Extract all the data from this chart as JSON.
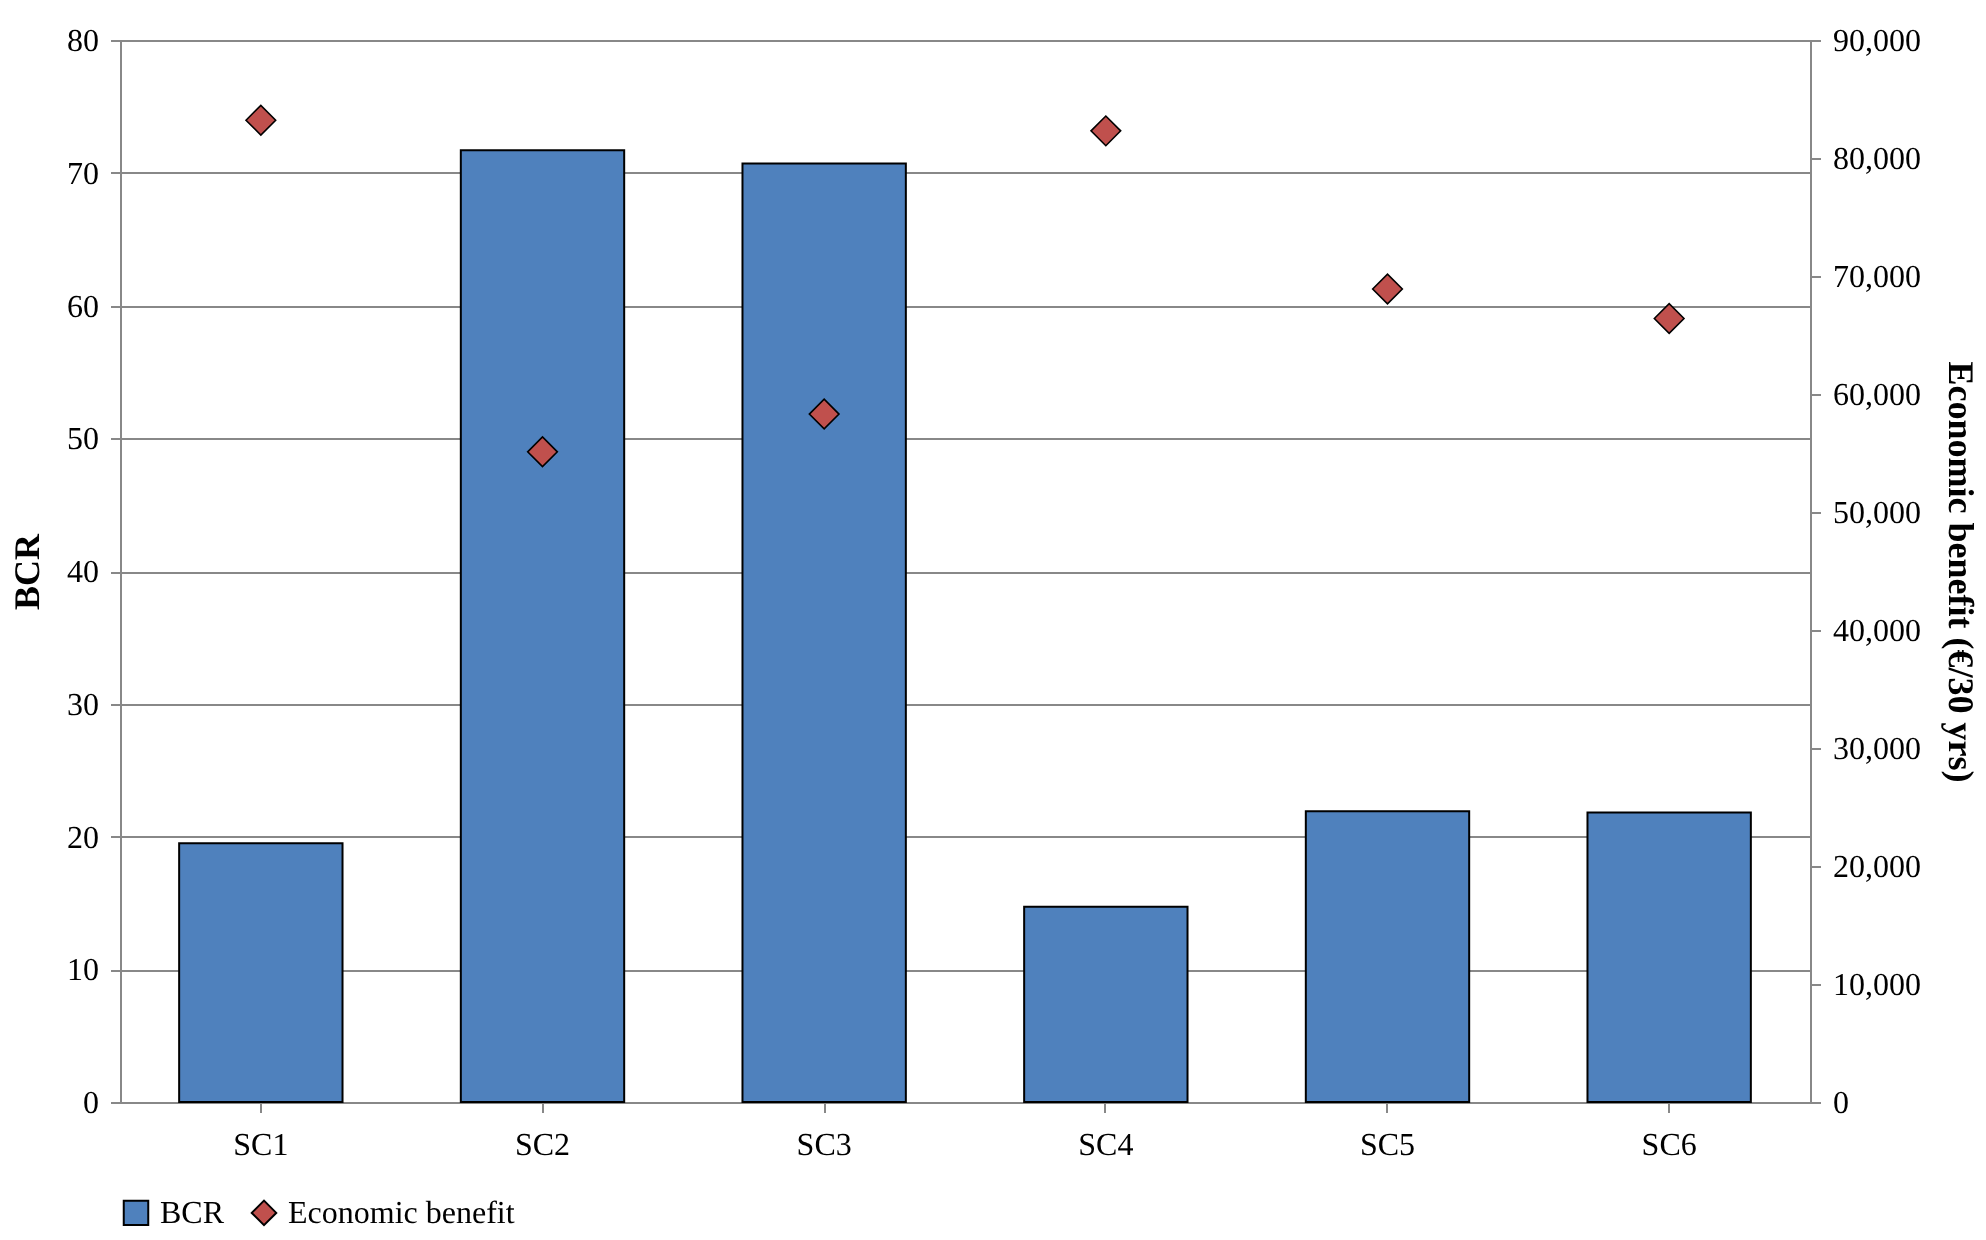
{
  "chart_data": {
    "type": "bar",
    "ylabel": "BCR",
    "y2label": "Economic benefit (€/30 yrs)",
    "categories": [
      "SC1",
      "SC2",
      "SC3",
      "SC4",
      "SC5",
      "SC6"
    ],
    "series": [
      {
        "name": "BCR",
        "color": "#4f81bd",
        "values": [
          19.5,
          71.7,
          70.7,
          14.7,
          21.9,
          21.8
        ]
      },
      {
        "name": "Economic benefit",
        "type": "scatter",
        "axis": "y2",
        "color": "#c0504d",
        "marker": "diamond",
        "values": [
          83200,
          55100,
          58300,
          82300,
          68900,
          66400
        ]
      }
    ],
    "ylim": [
      0,
      80
    ],
    "yticks": [
      0,
      10,
      20,
      30,
      40,
      50,
      60,
      70,
      80
    ],
    "y2lim": [
      0,
      90000
    ],
    "y2ticks": [
      0,
      {
        "value": 10000,
        "label": "10,000"
      },
      {
        "value": 20000,
        "label": "20,000"
      },
      {
        "value": 30000,
        "label": "30,000"
      },
      {
        "value": 40000,
        "label": "40,000"
      },
      {
        "value": 50000,
        "label": "50,000"
      },
      {
        "value": 60000,
        "label": "60,000"
      },
      {
        "value": 70000,
        "label": "70,000"
      },
      {
        "value": 80000,
        "label": "80,000"
      },
      {
        "value": 90000,
        "label": "90,000"
      }
    ],
    "grid": "y",
    "legend": "bottom"
  }
}
